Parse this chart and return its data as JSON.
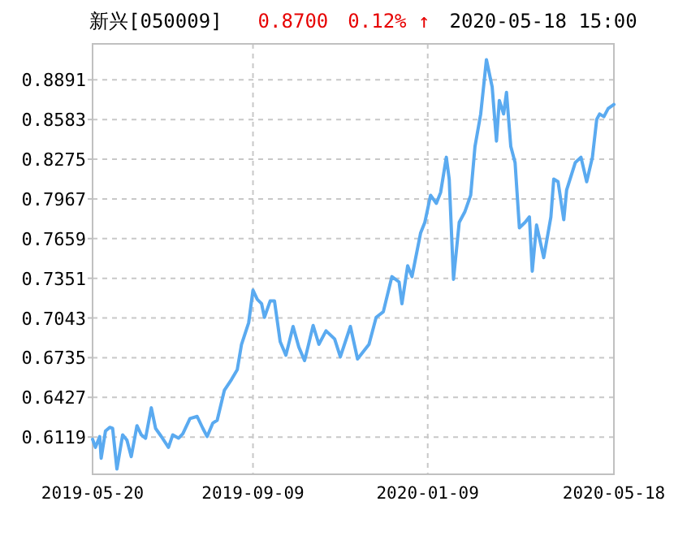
{
  "chart_data": {
    "type": "line",
    "title": "新兴[050009]",
    "annotations": [
      "0.8700",
      "0.12% ↑",
      "2020-05-18 15:00"
    ],
    "xlim": [
      "2019-05-20",
      "2020-05-18"
    ],
    "xticks": [
      "2019-05-20",
      "2019-09-09",
      "2020-01-09",
      "2020-05-18"
    ],
    "ylim": [
      0.583,
      0.917
    ],
    "yticks": [
      0.6119,
      0.6427,
      0.6735,
      0.7043,
      0.7351,
      0.7659,
      0.7967,
      0.8275,
      0.8583,
      0.8891
    ],
    "grid": true,
    "series": [
      {
        "color": "#5aaaf0",
        "x": [
          "2019-05-20",
          "2019-05-22",
          "2019-05-25",
          "2019-05-26",
          "2019-05-29",
          "2019-06-01",
          "2019-06-03",
          "2019-06-06",
          "2019-06-10",
          "2019-06-13",
          "2019-06-16",
          "2019-06-20",
          "2019-06-23",
          "2019-06-26",
          "2019-06-30",
          "2019-07-03",
          "2019-07-07",
          "2019-07-12",
          "2019-07-15",
          "2019-07-19",
          "2019-07-22",
          "2019-07-27",
          "2019-08-01",
          "2019-08-05",
          "2019-08-08",
          "2019-08-12",
          "2019-08-15",
          "2019-08-20",
          "2019-08-25",
          "2019-08-29",
          "2019-09-01",
          "2019-09-06",
          "2019-09-09",
          "2019-09-12",
          "2019-09-15",
          "2019-09-17",
          "2019-09-21",
          "2019-09-24",
          "2019-09-28",
          "2019-10-02",
          "2019-10-07",
          "2019-10-11",
          "2019-10-15",
          "2019-10-16",
          "2019-10-21",
          "2019-10-25",
          "2019-10-30",
          "2019-11-05",
          "2019-11-09",
          "2019-11-16",
          "2019-11-21",
          "2019-11-29",
          "2019-12-04",
          "2019-12-09",
          "2019-12-15",
          "2019-12-20",
          "2019-12-22",
          "2019-12-26",
          "2019-12-29",
          "2020-01-04",
          "2020-01-07",
          "2020-01-11",
          "2020-01-15",
          "2020-01-18",
          "2020-01-22",
          "2020-01-24",
          "2020-01-27",
          "2020-01-31",
          "2020-02-04",
          "2020-02-08",
          "2020-02-11",
          "2020-02-15",
          "2020-02-19",
          "2020-02-23",
          "2020-02-26",
          "2020-02-28",
          "2020-03-02",
          "2020-03-04",
          "2020-03-07",
          "2020-03-10",
          "2020-03-13",
          "2020-03-17",
          "2020-03-20",
          "2020-03-22",
          "2020-03-25",
          "2020-03-30",
          "2020-04-04",
          "2020-04-06",
          "2020-04-09",
          "2020-04-13",
          "2020-04-15",
          "2020-04-21",
          "2020-04-25",
          "2020-04-29",
          "2020-05-03",
          "2020-05-06",
          "2020-05-08",
          "2020-05-11",
          "2020-05-14",
          "2020-05-18"
        ],
        "values": [
          0.6102,
          0.6039,
          0.6123,
          0.5955,
          0.6165,
          0.6194,
          0.6186,
          0.5871,
          0.6136,
          0.6094,
          0.5967,
          0.6207,
          0.6136,
          0.611,
          0.6346,
          0.6186,
          0.6123,
          0.6039,
          0.6136,
          0.611,
          0.6144,
          0.6262,
          0.6279,
          0.6186,
          0.6123,
          0.6228,
          0.6249,
          0.6481,
          0.6565,
          0.6641,
          0.6838,
          0.7006,
          0.7259,
          0.7187,
          0.7154,
          0.7048,
          0.7175,
          0.7175,
          0.6859,
          0.6754,
          0.6977,
          0.6817,
          0.6712,
          0.6754,
          0.6985,
          0.6838,
          0.6943,
          0.688,
          0.6741,
          0.6977,
          0.6725,
          0.6838,
          0.7048,
          0.7091,
          0.7364,
          0.7322,
          0.7154,
          0.7448,
          0.7364,
          0.7701,
          0.7785,
          0.7995,
          0.7932,
          0.8016,
          0.829,
          0.8121,
          0.7343,
          0.7785,
          0.7869,
          0.7995,
          0.8374,
          0.8626,
          0.9047,
          0.8836,
          0.8416,
          0.8731,
          0.8626,
          0.8794,
          0.8374,
          0.8248,
          0.7743,
          0.7785,
          0.7827,
          0.7406,
          0.7764,
          0.7511,
          0.7827,
          0.8121,
          0.81,
          0.7806,
          0.8037,
          0.8248,
          0.829,
          0.81,
          0.829,
          0.8584,
          0.8626,
          0.8605,
          0.8668,
          0.87
        ]
      }
    ]
  }
}
